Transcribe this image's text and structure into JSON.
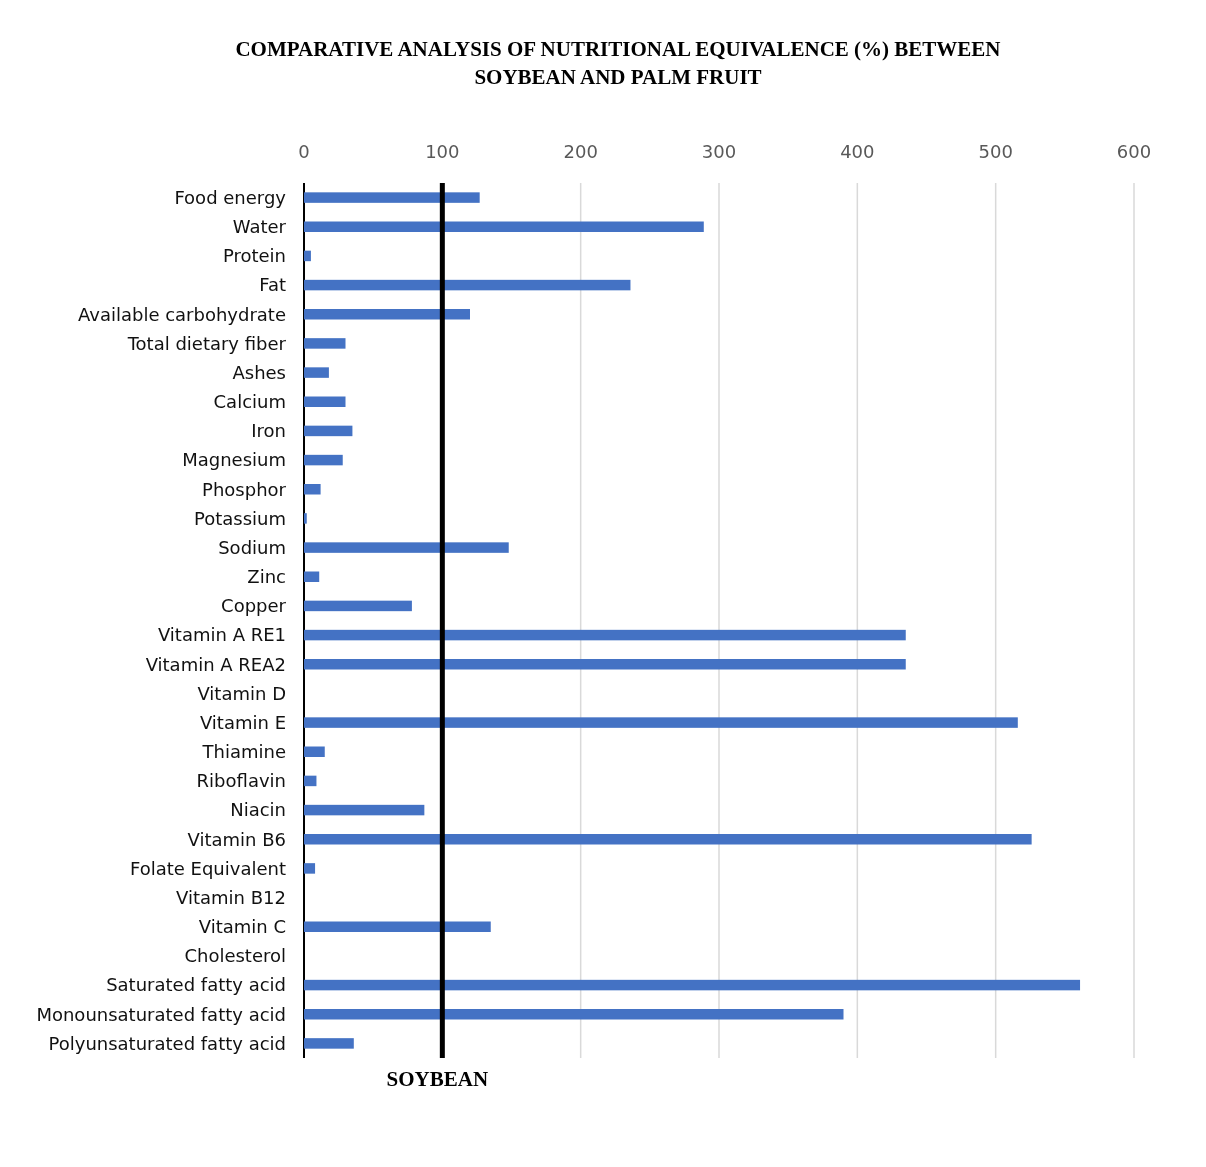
{
  "chart_data": {
    "type": "bar",
    "orientation": "horizontal",
    "title": "COMPARATIVE  ANALYSIS OF NUTRITIONAL  EQUIVALENCE (%) BETWEEN\nSOYBEAN AND PALM FRUIT",
    "categories": [
      "Food energy",
      "Water",
      "Protein",
      "Fat",
      "Available carbohydrate",
      "Total dietary fiber",
      "Ashes",
      "Calcium",
      "Iron",
      "Magnesium",
      "Phosphor",
      "Potassium",
      "Sodium",
      "Zinc",
      "Copper",
      "Vitamin A RE1",
      "Vitamin A REA2",
      "Vitamin D",
      "Vitamin E",
      "Thiamine",
      "Riboflavin",
      "Niacin",
      "Vitamin B6",
      "Folate Equivalent",
      "Vitamin B12",
      "Vitamin C",
      "Cholesterol",
      "Saturated fatty acid",
      "Monounsaturated fatty acid",
      "Polyunsaturated fatty acid"
    ],
    "values": [
      127,
      289,
      5,
      236,
      120,
      30,
      18,
      30,
      35,
      28,
      12,
      2,
      148,
      11,
      78,
      435,
      435,
      0,
      516,
      15,
      9,
      87,
      526,
      8,
      0,
      135,
      0,
      561,
      390,
      36
    ],
    "color": "#4472c4",
    "xlim": [
      0,
      600
    ],
    "xticks": [
      0,
      100,
      200,
      300,
      400,
      500,
      600
    ],
    "grid": "x",
    "ref_lines": [
      {
        "axis": "x",
        "value": 100,
        "label": "SOYBEAN",
        "color": "#000000"
      }
    ]
  }
}
